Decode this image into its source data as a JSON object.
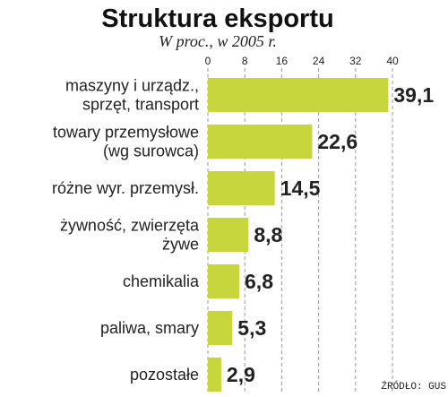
{
  "chart_data": {
    "type": "bar",
    "orientation": "horizontal",
    "title": "Struktura eksportu",
    "subtitle": "W proc., w 2005 r.",
    "xlim": [
      0,
      40
    ],
    "ticks": [
      "0",
      "8",
      "16",
      "24",
      "32",
      "40"
    ],
    "categories": [
      [
        "maszyny i urządz.,",
        "sprzęt, transport"
      ],
      [
        "towary przemysłowe",
        "(wg surowca)"
      ],
      [
        "różne wyr. przemysł."
      ],
      [
        "żywność, zwierzęta",
        "żywe"
      ],
      [
        "chemikalia"
      ],
      [
        "paliwa, smary"
      ],
      [
        "pozostałe"
      ]
    ],
    "values": [
      39.1,
      22.6,
      14.5,
      8.8,
      6.8,
      5.3,
      2.9
    ],
    "value_labels": [
      "39,1",
      "22,6",
      "14,5",
      "8,8",
      "6,8",
      "5,3",
      "2,9"
    ],
    "grid": true,
    "bar_color": "#c6d63c",
    "source": "ŹRÓDŁO: GUS"
  }
}
